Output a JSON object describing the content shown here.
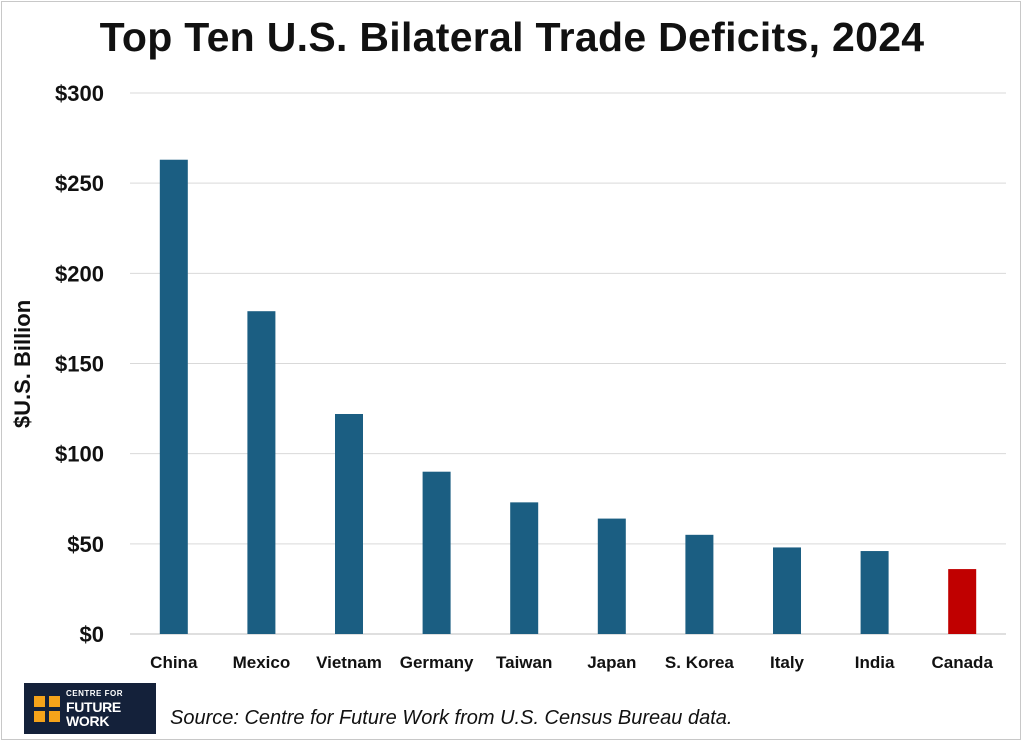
{
  "chart_data": {
    "type": "bar",
    "title": "Top Ten U.S. Bilateral Trade Deficits, 2024",
    "ylabel": "$U.S. Billion",
    "xlabel": "",
    "categories": [
      "China",
      "Mexico",
      "Vietnam",
      "Germany",
      "Taiwan",
      "Japan",
      "S. Korea",
      "Italy",
      "India",
      "Canada"
    ],
    "values": [
      263,
      179,
      122,
      90,
      73,
      64,
      55,
      48,
      46,
      36
    ],
    "ylim": [
      0,
      300
    ],
    "yticks": [
      0,
      50,
      100,
      150,
      200,
      250,
      300
    ],
    "ytick_labels": [
      "$0",
      "$50",
      "$100",
      "$150",
      "$200",
      "$250",
      "$300"
    ],
    "grid": true,
    "colors": {
      "default": "#1b5e82",
      "highlight": "#c00000",
      "highlight_category": "Canada",
      "grid": "#d9d9d9",
      "axis": "#bfbfbf"
    }
  },
  "source": "Source: Centre for Future Work from U.S. Census Bureau data.",
  "logo": {
    "line1": "CENTRE FOR",
    "line2": "FUTURE WORK",
    "colors": {
      "background": "#14213a",
      "accent": "#f5a31a"
    }
  }
}
